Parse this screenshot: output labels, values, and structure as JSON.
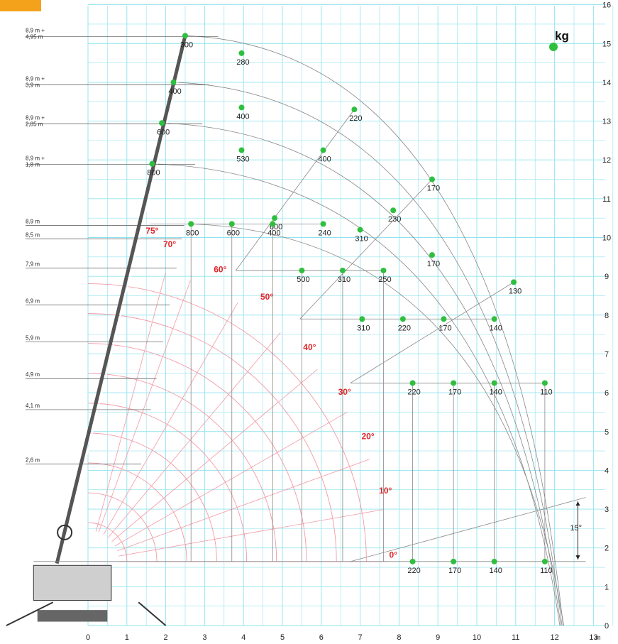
{
  "unit_label": "kg",
  "unit_marker_color": "#2fbf3f",
  "colors": {
    "grid": "#8fe3ee",
    "arcs": "#f29aa5",
    "angle_text": "#e0262b",
    "curves": "#888888",
    "point": "#2fbf3f",
    "boom": "#555555"
  },
  "chart_data": {
    "type": "load-chart",
    "x_ticks": [
      "0",
      "1",
      "2",
      "3",
      "4",
      "5",
      "6",
      "7",
      "8",
      "9",
      "10",
      "11",
      "12",
      "13"
    ],
    "x_unit": "m",
    "y_ticks": [
      "0",
      "1",
      "2",
      "3",
      "4",
      "5",
      "6",
      "7",
      "8",
      "9",
      "10",
      "11",
      "12",
      "13",
      "14",
      "15",
      "16"
    ],
    "xlim": [
      0,
      13
    ],
    "ylim": [
      0,
      16
    ],
    "height_labels": [
      {
        "text": [
          "8,9 m +",
          "4,95 m"
        ],
        "y": 15.2
      },
      {
        "text": [
          "8,9 m +",
          "3,9 m"
        ],
        "y": 13.95
      },
      {
        "text": [
          "8,9 m +",
          "2,85 m"
        ],
        "y": 12.95
      },
      {
        "text": [
          "8,9 m +",
          "1,8 m"
        ],
        "y": 11.9
      },
      {
        "text": [
          "8,9 m"
        ],
        "y": 10.35
      },
      {
        "text": [
          "8,5 m"
        ],
        "y": 10.0
      },
      {
        "text": [
          "7,9 m"
        ],
        "y": 9.25
      },
      {
        "text": [
          "6,9 m"
        ],
        "y": 8.3
      },
      {
        "text": [
          "5,9 m"
        ],
        "y": 7.35
      },
      {
        "text": [
          "4,9 m"
        ],
        "y": 6.4
      },
      {
        "text": [
          "4,1 m"
        ],
        "y": 5.6
      },
      {
        "text": [
          "2,6 m"
        ],
        "y": 4.2
      }
    ],
    "angle_labels": [
      {
        "text": "75°",
        "x": 1.65,
        "y": 10.1
      },
      {
        "text": "70°",
        "x": 2.1,
        "y": 9.75
      },
      {
        "text": "60°",
        "x": 3.4,
        "y": 9.1
      },
      {
        "text": "50°",
        "x": 4.6,
        "y": 8.4
      },
      {
        "text": "40°",
        "x": 5.7,
        "y": 7.1
      },
      {
        "text": "30°",
        "x": 6.6,
        "y": 5.95
      },
      {
        "text": "20°",
        "x": 7.2,
        "y": 4.8
      },
      {
        "text": "10°",
        "x": 7.65,
        "y": 3.4
      },
      {
        "text": "0°",
        "x": 7.85,
        "y": 1.75
      }
    ],
    "points": [
      {
        "x": 2.5,
        "y": 15.2,
        "label": "300"
      },
      {
        "x": 3.95,
        "y": 14.75,
        "label": "280"
      },
      {
        "x": 2.2,
        "y": 14.0,
        "label": "400"
      },
      {
        "x": 3.95,
        "y": 13.35,
        "label": "400"
      },
      {
        "x": 6.85,
        "y": 13.3,
        "label": "220"
      },
      {
        "x": 1.9,
        "y": 12.95,
        "label": "600"
      },
      {
        "x": 3.95,
        "y": 12.25,
        "label": "530"
      },
      {
        "x": 6.05,
        "y": 12.25,
        "label": "400"
      },
      {
        "x": 1.65,
        "y": 11.9,
        "label": "800"
      },
      {
        "x": 8.85,
        "y": 11.5,
        "label": "170"
      },
      {
        "x": 7.85,
        "y": 10.7,
        "label": "230"
      },
      {
        "x": 4.8,
        "y": 10.5,
        "label": "600"
      },
      {
        "x": 2.65,
        "y": 10.35,
        "label": "800"
      },
      {
        "x": 3.7,
        "y": 10.35,
        "label": "600"
      },
      {
        "x": 4.75,
        "y": 10.35,
        "label": "400"
      },
      {
        "x": 6.05,
        "y": 10.35,
        "label": "240"
      },
      {
        "x": 7.0,
        "y": 10.2,
        "label": "310"
      },
      {
        "x": 8.85,
        "y": 9.55,
        "label": "170"
      },
      {
        "x": 5.5,
        "y": 9.15,
        "label": "500"
      },
      {
        "x": 6.55,
        "y": 9.15,
        "label": "310"
      },
      {
        "x": 7.6,
        "y": 9.15,
        "label": "250"
      },
      {
        "x": 10.95,
        "y": 8.85,
        "label": "130"
      },
      {
        "x": 7.05,
        "y": 7.9,
        "label": "310"
      },
      {
        "x": 8.1,
        "y": 7.9,
        "label": "220"
      },
      {
        "x": 9.15,
        "y": 7.9,
        "label": "170"
      },
      {
        "x": 10.45,
        "y": 7.9,
        "label": "140"
      },
      {
        "x": 8.35,
        "y": 6.25,
        "label": "220"
      },
      {
        "x": 9.4,
        "y": 6.25,
        "label": "170"
      },
      {
        "x": 10.45,
        "y": 6.25,
        "label": "140"
      },
      {
        "x": 11.75,
        "y": 6.25,
        "label": "110"
      },
      {
        "x": 8.35,
        "y": 1.65,
        "label": "220"
      },
      {
        "x": 9.4,
        "y": 1.65,
        "label": "170"
      },
      {
        "x": 10.45,
        "y": 1.65,
        "label": "140"
      },
      {
        "x": 11.75,
        "y": 1.65,
        "label": "110"
      }
    ],
    "tilt_label": "15°"
  }
}
